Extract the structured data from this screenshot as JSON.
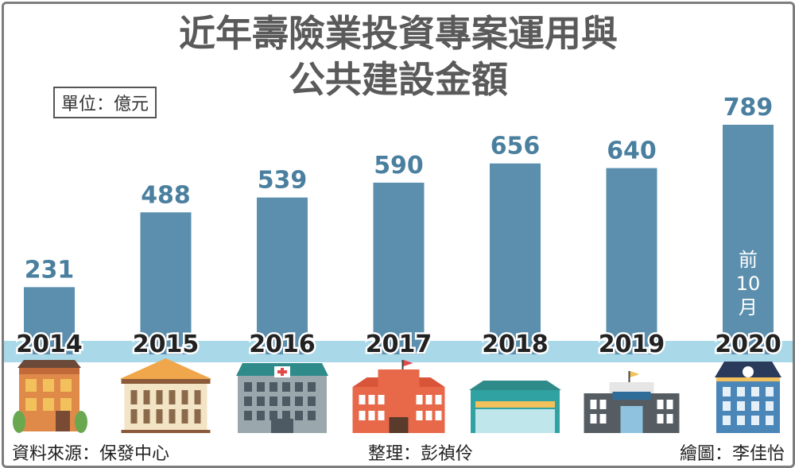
{
  "title_line1": "近年壽險業投資專案運用與",
  "title_line2": "公共建設金額",
  "unit": "單位：億元",
  "chart_data": {
    "type": "bar",
    "categories": [
      "2014",
      "2015",
      "2016",
      "2017",
      "2018",
      "2019",
      "2020"
    ],
    "values": [
      231,
      488,
      539,
      590,
      656,
      640,
      789
    ],
    "ylabel": "",
    "xlabel": "",
    "ylim": [
      0,
      789
    ],
    "bar_color": "#5b8fad",
    "band_color": "#a9d8e8",
    "annotation": {
      "category": "2020",
      "lines": [
        "前",
        "10",
        "月"
      ]
    }
  },
  "footer": {
    "source": "資料來源：保發中心",
    "editor": "整理：彭禎伶",
    "artist": "繪圖：李佳怡"
  },
  "building_icons": [
    "house-icon",
    "bank-icon",
    "hospital-icon",
    "school-icon",
    "station-icon",
    "police-station-icon",
    "mansion-icon"
  ]
}
